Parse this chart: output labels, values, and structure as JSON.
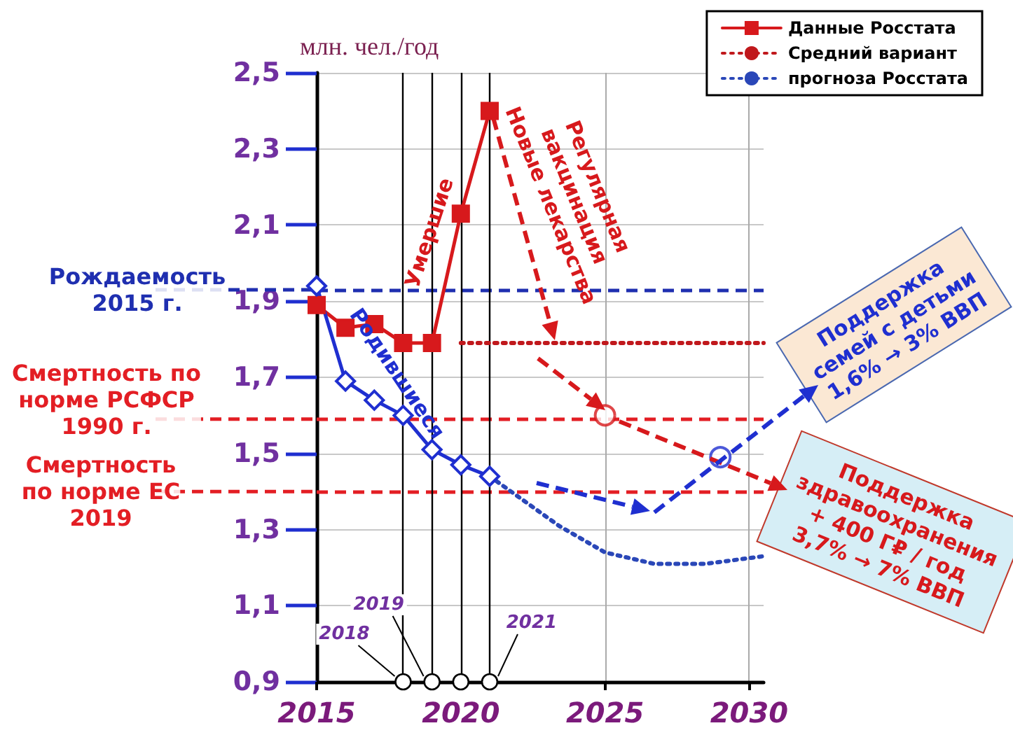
{
  "chart_data": {
    "type": "line",
    "ylabel": "млн. чел./год",
    "xlim": [
      2015,
      2030.5
    ],
    "xticks": [
      2015,
      2020,
      2025,
      2030
    ],
    "ylim": [
      0.9,
      2.5
    ],
    "yticks": [
      {
        "value": 0.9,
        "label": "0,9"
      },
      {
        "value": 1.1,
        "label": "1,1"
      },
      {
        "value": 1.3,
        "label": "1,3"
      },
      {
        "value": 1.5,
        "label": "1,5"
      },
      {
        "value": 1.7,
        "label": "1,7"
      },
      {
        "value": 1.9,
        "label": "1,9"
      },
      {
        "value": 2.1,
        "label": "2,1"
      },
      {
        "value": 2.3,
        "label": "2,3"
      },
      {
        "value": 2.5,
        "label": "2,5"
      }
    ],
    "grid": true,
    "legend": "top right",
    "series": [
      {
        "name": "Данные Росстата",
        "color": "#d7191c",
        "marker": "square",
        "line_style": "solid",
        "x": [
          2015,
          2016,
          2017,
          2018,
          2019,
          2020,
          2021
        ],
        "values": [
          1.89,
          1.83,
          1.84,
          1.79,
          1.79,
          2.13,
          2.4
        ]
      },
      {
        "color": "#1f2fd0",
        "marker": "diamond",
        "line_style": "solid",
        "x": [
          2015,
          2016,
          2017,
          2018,
          2019,
          2020,
          2021
        ],
        "values": [
          1.94,
          1.69,
          1.64,
          1.6,
          1.51,
          1.47,
          1.44
        ]
      },
      {
        "name": "Средний вариант",
        "color": "#c0181c",
        "marker": "none",
        "line_style": "dotted",
        "x": [
          2020,
          2030.5
        ],
        "values": [
          1.79,
          1.79
        ]
      },
      {
        "name": "прогноза Росстата",
        "color": "#2a47b8",
        "marker": "none",
        "line_style": "dotted",
        "x": [
          2021,
          2023.4,
          2025,
          2026.7,
          2028.5,
          2030.5
        ],
        "values": [
          1.44,
          1.31,
          1.24,
          1.21,
          1.21,
          1.23
        ]
      },
      {
        "type": "scatter",
        "marker": "circle",
        "x": [
          2025,
          2029
        ],
        "values": [
          1.6,
          1.49
        ],
        "colors": [
          "#d7191c",
          "#1f2fd0"
        ]
      }
    ],
    "ref_lines": [
      {
        "axis": "y",
        "value": 1.93,
        "label": "Рождаемость\n2015 г.",
        "color": "#1f2fb0",
        "line_style": "dashed"
      },
      {
        "axis": "y",
        "value": 1.59,
        "label": "Смертность по\nнорме РСФСР\n1990 г.",
        "color": "#e31e24",
        "line_style": "dashed"
      },
      {
        "axis": "y",
        "value": 1.4,
        "label": "Смертность\nпо норме ЕС\n2019",
        "color": "#e31e24",
        "line_style": "dashed"
      },
      {
        "axis": "x",
        "value": 2018,
        "label": "2018",
        "color": "#000000",
        "line_style": "solid"
      },
      {
        "axis": "x",
        "value": 2019,
        "label": "2019",
        "color": "#000000",
        "line_style": "solid"
      },
      {
        "axis": "x",
        "value": 2020,
        "color": "#000000",
        "line_style": "solid"
      },
      {
        "axis": "x",
        "value": 2021,
        "label": "2021",
        "color": "#000000",
        "line_style": "solid"
      }
    ],
    "annotations": [
      {
        "text": "Умершие",
        "x": 2018.9,
        "y": 2.08
      },
      "Регулярная\nвакцинация\nНовые лекарства",
      {
        "text": "Родившиеся",
        "x": 2017.8,
        "y": 1.71
      },
      "Поддержка\nсемей с детьми\n1,6% → 3% ВВП",
      "Поддержка\nздравоохранения\n+ 400 Г₽ / год\n3,7% → 7% ВВП"
    ]
  }
}
